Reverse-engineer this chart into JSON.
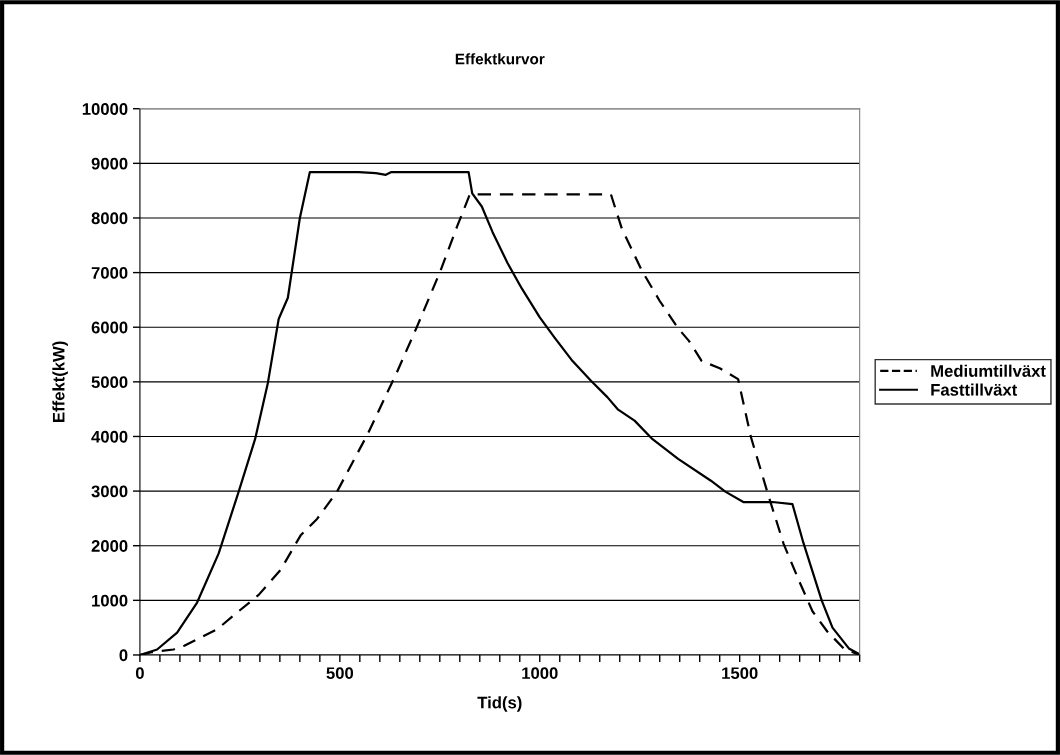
{
  "chart_data": {
    "type": "line",
    "title": "Effektkurvor",
    "xlabel": "Tid(s)",
    "ylabel": "Effekt(kW)",
    "xlim": [
      0,
      1800
    ],
    "ylim": [
      0,
      10000
    ],
    "xticks": [
      0,
      {
        "value": 50,
        "label": null
      },
      {
        "value": 100,
        "label": null
      },
      {
        "value": 150,
        "label": null
      },
      {
        "value": 200,
        "label": null
      },
      {
        "value": 250,
        "label": null
      },
      {
        "value": 300,
        "label": null
      },
      {
        "value": 350,
        "label": null
      },
      {
        "value": 400,
        "label": null
      },
      {
        "value": 450,
        "label": null
      },
      500,
      {
        "value": 550,
        "label": null
      },
      {
        "value": 600,
        "label": null
      },
      {
        "value": 650,
        "label": null
      },
      {
        "value": 700,
        "label": null
      },
      {
        "value": 750,
        "label": null
      },
      {
        "value": 800,
        "label": null
      },
      {
        "value": 850,
        "label": null
      },
      {
        "value": 900,
        "label": null
      },
      {
        "value": 950,
        "label": null
      },
      1000,
      {
        "value": 1050,
        "label": null
      },
      {
        "value": 1100,
        "label": null
      },
      {
        "value": 1150,
        "label": null
      },
      {
        "value": 1200,
        "label": null
      },
      {
        "value": 1250,
        "label": null
      },
      {
        "value": 1300,
        "label": null
      },
      {
        "value": 1350,
        "label": null
      },
      {
        "value": 1400,
        "label": null
      },
      {
        "value": 1450,
        "label": null
      },
      1500,
      {
        "value": 1550,
        "label": null
      },
      {
        "value": 1600,
        "label": null
      },
      {
        "value": 1650,
        "label": null
      },
      {
        "value": 1700,
        "label": null
      },
      {
        "value": 1750,
        "label": null
      },
      {
        "value": 1800,
        "label": null
      }
    ],
    "yticks": [
      0,
      1000,
      2000,
      3000,
      4000,
      5000,
      6000,
      7000,
      8000,
      9000,
      10000
    ],
    "grid": "y",
    "legend": "right",
    "marker": "none",
    "series": [
      {
        "name": "Mediumtillväxt",
        "color": "#000000",
        "line_style": "dashed",
        "x": [
          0,
          29,
          84,
          111,
          193,
          247,
          297,
          352,
          402,
          443,
          493,
          570,
          643,
          693,
          752,
          793,
          825,
          1178,
          1205,
          1255,
          1300,
          1346,
          1373,
          1405,
          1450,
          1496,
          1528,
          1573,
          1610,
          1650,
          1682,
          1719,
          1760,
          1800
        ],
        "values": [
          0,
          50,
          100,
          170,
          470,
          800,
          1100,
          1560,
          2190,
          2490,
          2990,
          4050,
          5180,
          6010,
          7040,
          7840,
          8430,
          8430,
          7810,
          7040,
          6480,
          5980,
          5750,
          5380,
          5250,
          5050,
          3990,
          2890,
          2030,
          1330,
          800,
          430,
          120,
          0
        ]
      },
      {
        "name": "Fasttillväxt",
        "color": "#000000",
        "line_style": "solid",
        "x": [
          0,
          43,
          93,
          143,
          197,
          247,
          288,
          320,
          347,
          370,
          400,
          425,
          547,
          590,
          615,
          629,
          822,
          831,
          855,
          882,
          919,
          955,
          1000,
          1037,
          1082,
          1128,
          1169,
          1196,
          1237,
          1282,
          1346,
          1428,
          1464,
          1509,
          1582,
          1632,
          1659,
          1682,
          1705,
          1732,
          1773,
          1800
        ],
        "values": [
          0,
          100,
          410,
          960,
          1860,
          2990,
          3950,
          4980,
          6150,
          6540,
          8000,
          8840,
          8840,
          8820,
          8790,
          8840,
          8840,
          8450,
          8210,
          7740,
          7180,
          6710,
          6180,
          5810,
          5380,
          5020,
          4720,
          4490,
          4290,
          3950,
          3590,
          3190,
          2990,
          2800,
          2800,
          2760,
          2060,
          1530,
          1000,
          500,
          120,
          10
        ]
      }
    ]
  }
}
